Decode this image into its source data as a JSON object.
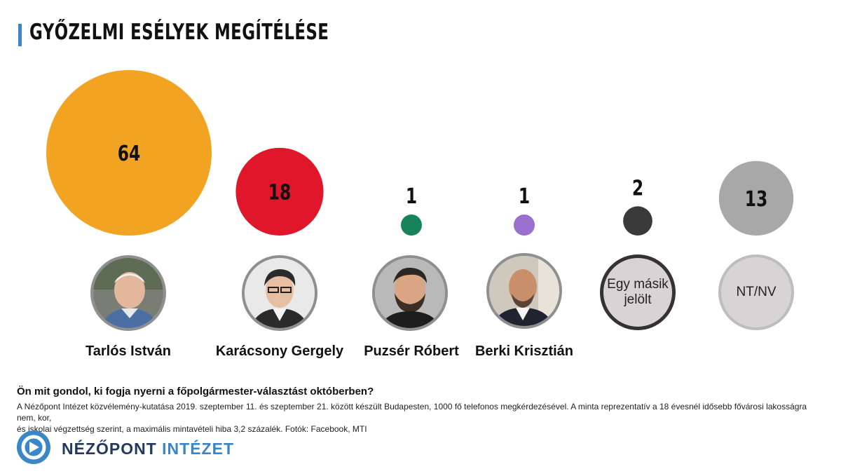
{
  "title": "GYŐZELMI ESÉLYEK MEGÍTÉLÉSE",
  "chart_data": {
    "type": "bubble",
    "categories": [
      "Tarlós István",
      "Karácsony Gergely",
      "Puzsér Róbert",
      "Berki Krisztián",
      "Egy másik jelölt",
      "NT/NV"
    ],
    "values": [
      64,
      18,
      1,
      1,
      2,
      13
    ],
    "colors": [
      "#f2a322",
      "#e0162b",
      "#16835a",
      "#9a6fcf",
      "#3a3a3a",
      "#a8a8a8"
    ]
  },
  "people": [
    {
      "name": "Tarlós István",
      "avatar": "photo-tarlos"
    },
    {
      "name": "Karácsony Gergely",
      "avatar": "photo-karacsony"
    },
    {
      "name": "Puzsér Róbert",
      "avatar": "photo-puzser"
    },
    {
      "name": "Berki Krisztián",
      "avatar": "photo-berki"
    },
    {
      "name": "",
      "avatar_text_1": "Egy másik",
      "avatar_text_2": "jelölt"
    },
    {
      "name": "",
      "avatar_text": "NT/NV"
    }
  ],
  "question": "Ön mit gondol, ki fogja nyerni a főpolgármester-választást októberben?",
  "note_line1": "A Nézőpont Intézet közvélemény-kutatása 2019. szeptember 11. és szeptember 21. között készült Budapesten, 1000 fő telefonos megkérdezésével. A minta reprezentatív a 18 évesnél idősebb fővárosi lakosságra nem, kor,",
  "note_line2": "és iskolai végzettség szerint, a maximális mintavételi hiba 3,2 százalék. Fotók: Facebook, MTI",
  "logo": {
    "part1": "NÉZŐPONT",
    "part2": "INTÉZET",
    "icon": "nezopont-logo-icon"
  }
}
